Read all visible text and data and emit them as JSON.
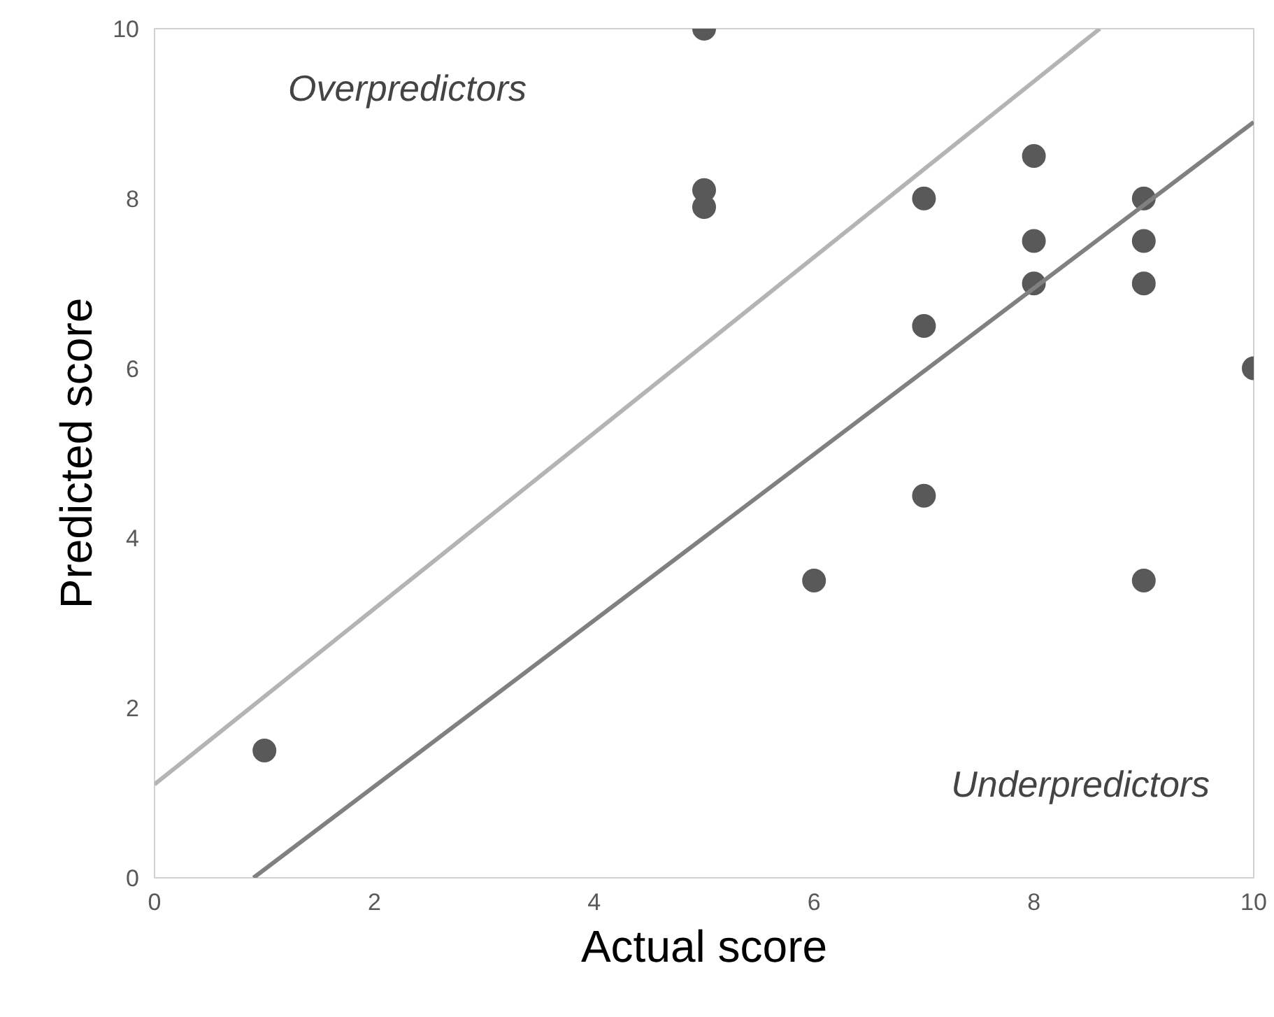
{
  "chart_data": {
    "type": "scatter",
    "xlabel": "Actual score",
    "ylabel": "Predicted score",
    "xlim": [
      0,
      10
    ],
    "ylim": [
      0,
      10
    ],
    "xticks": [
      0,
      2,
      4,
      6,
      8,
      10
    ],
    "yticks": [
      0,
      2,
      4,
      6,
      8,
      10
    ],
    "grid": false,
    "series": [
      {
        "color": "#595959",
        "marker": "circle",
        "x": [
          5,
          5,
          5,
          7,
          8,
          8,
          8,
          9,
          9,
          9,
          7,
          10,
          7,
          6,
          9,
          1
        ],
        "values": [
          10,
          8.1,
          7.9,
          8,
          8.5,
          7.5,
          7,
          8,
          7.5,
          7,
          6.5,
          6,
          4.5,
          3.5,
          3.5,
          1.5
        ]
      },
      {
        "type": "line",
        "color": "#b4b4b4",
        "x": [
          0,
          8.6
        ],
        "values": [
          1.1,
          10
        ]
      },
      {
        "type": "line",
        "color": "#808080",
        "x": [
          0.9,
          10
        ],
        "values": [
          0,
          8.9
        ]
      }
    ],
    "annotations": [
      "Overpredictors",
      "Underpredictors"
    ]
  }
}
